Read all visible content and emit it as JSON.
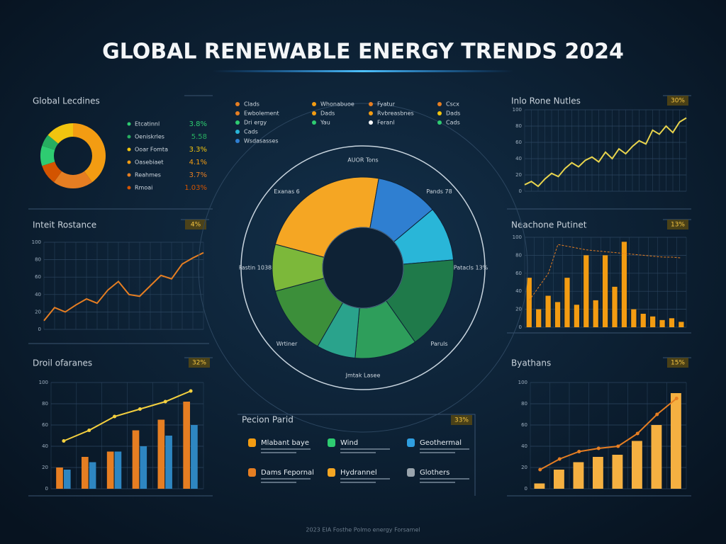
{
  "title": "GLOBAL RENEWABLE ENERGY TRENDS 2024",
  "footer": "2023 EIA Fosthe Polmo energy Forsamel",
  "chart_data": [
    {
      "type": "donut",
      "title": "Global Lecdines",
      "categories": [
        "Etcatinnl",
        "Oeniskrles",
        "Ooar Fomta",
        "Oasebiaet",
        "Reahmes",
        "Rmoai"
      ],
      "values": [
        10,
        6,
        14,
        40,
        20,
        10
      ],
      "colors": [
        "#2ecc71",
        "#27ae60",
        "#f1c40f",
        "#f39c12",
        "#e67e22",
        "#d35400"
      ],
      "annotations": [
        "3.8%",
        "5.58",
        "3.3%",
        "4.1%",
        "3.7%",
        "1.03%"
      ]
    },
    {
      "type": "line",
      "title": "Inlo Rone Nutles",
      "badge": "30%",
      "ylim": [
        0,
        100
      ],
      "yticks": [
        0,
        20,
        40,
        60,
        80,
        100
      ],
      "grid": true,
      "series": [
        {
          "color": "#e8d44d",
          "values": [
            8,
            12,
            6,
            15,
            22,
            18,
            28,
            35,
            30,
            38,
            42,
            36,
            48,
            40,
            52,
            46,
            55,
            62,
            58,
            75,
            70,
            80,
            72,
            85,
            90
          ]
        }
      ]
    },
    {
      "type": "line",
      "title": "Inteit Rostance",
      "badge": "4%",
      "ylim": [
        0,
        100
      ],
      "yticks": [
        0,
        20,
        40,
        60,
        80,
        100
      ],
      "grid": true,
      "series": [
        {
          "color": "#e67e22",
          "values": [
            10,
            25,
            20,
            28,
            35,
            30,
            45,
            55,
            40,
            38,
            50,
            62,
            58,
            75,
            82,
            88
          ]
        }
      ]
    },
    {
      "type": "combo",
      "title": "Neachone Putinet",
      "badge": "13%",
      "ylim": [
        0,
        100
      ],
      "yticks": [
        0,
        20,
        40,
        60,
        80,
        100
      ],
      "grid": true,
      "series": [
        {
          "kind": "bar",
          "color": "#f39c12",
          "values": [
            55,
            20,
            35,
            28,
            55,
            25,
            80,
            30,
            80,
            45,
            95,
            20,
            15,
            12,
            8,
            10,
            6
          ]
        },
        {
          "kind": "line",
          "dash": true,
          "color": "#e67e22",
          "values": [
            30,
            45,
            60,
            92,
            90,
            88,
            86,
            85,
            84,
            83,
            82,
            81,
            80,
            79,
            78,
            78,
            77
          ]
        }
      ]
    },
    {
      "type": "combo",
      "title": "Droil ofaranes",
      "badge": "32%",
      "ylim": [
        0,
        100
      ],
      "yticks": [
        0,
        20,
        40,
        60,
        80,
        100
      ],
      "grid": true,
      "series": [
        {
          "kind": "bar",
          "color": "#e67e22",
          "values": [
            20,
            30,
            35,
            55,
            65,
            82
          ]
        },
        {
          "kind": "bar",
          "color": "#2e86c1",
          "values": [
            18,
            25,
            35,
            40,
            50,
            60
          ]
        },
        {
          "kind": "line",
          "color": "#f4d03f",
          "values": [
            45,
            55,
            68,
            75,
            82,
            92
          ]
        }
      ]
    },
    {
      "type": "combo",
      "title": "Byathans",
      "badge": "15%",
      "ylim": [
        0,
        100
      ],
      "yticks": [
        0,
        20,
        40,
        60,
        80,
        100
      ],
      "grid": true,
      "series": [
        {
          "kind": "bar",
          "color": "#f5b041",
          "values": [
            5,
            18,
            25,
            30,
            32,
            45,
            60,
            90
          ]
        },
        {
          "kind": "line",
          "color": "#e67e22",
          "values": [
            18,
            28,
            35,
            38,
            40,
            52,
            70,
            85
          ]
        }
      ]
    },
    {
      "type": "radial",
      "values": [
        85,
        40,
        35,
        60,
        40,
        25,
        45,
        30
      ],
      "colors": [
        "#f5a623",
        "#2f7fd1",
        "#29b6d8",
        "#1f7a4a",
        "#2e9e5b",
        "#2aa38c",
        "#3c8f3a",
        "#7cb83a"
      ],
      "annotations": [
        "AUOR Tons",
        "Pands 78",
        "Patacls 13%",
        "Paruls",
        "Jmtak Lasee",
        "Wrtiner",
        "Fastin 1038",
        "Exanas 6"
      ],
      "legend": [
        {
          "name": "Clads",
          "color": "#e67e22"
        },
        {
          "name": "Ewbolement",
          "color": "#e67e22"
        },
        {
          "name": "Dri ergy",
          "color": "#2ecc71"
        },
        {
          "name": "Cads",
          "color": "#29b6d8"
        },
        {
          "name": "Wsdasasses",
          "color": "#2f7fd1"
        },
        {
          "name": "Whonabuoe",
          "color": "#f39c12"
        },
        {
          "name": "Dads",
          "color": "#f39c12"
        },
        {
          "name": "Yau",
          "color": "#2ecc71"
        },
        {
          "name": "Fyatur",
          "color": "#e67e22"
        },
        {
          "name": "Rvbreasbnes",
          "color": "#f39c12"
        },
        {
          "name": "Feranl",
          "color": "#ffffff"
        },
        {
          "name": "Cscx",
          "color": "#e67e22"
        },
        {
          "name": "Dads",
          "color": "#f1c40f"
        },
        {
          "name": "Cads",
          "color": "#2ecc71"
        }
      ]
    }
  ],
  "panel": {
    "title": "Pecion Parid",
    "badge": "33%",
    "items": [
      {
        "name": "Mlabant baye",
        "color": "#f39c12"
      },
      {
        "name": "Wind",
        "color": "#2ecc71"
      },
      {
        "name": "Geothermal",
        "color": "#2f9fe0"
      },
      {
        "name": "Dams Fepornal",
        "color": "#e67e22"
      },
      {
        "name": "Hydrannel",
        "color": "#f5a623"
      },
      {
        "name": "Glothers",
        "color": "#9aa4ad"
      }
    ]
  }
}
